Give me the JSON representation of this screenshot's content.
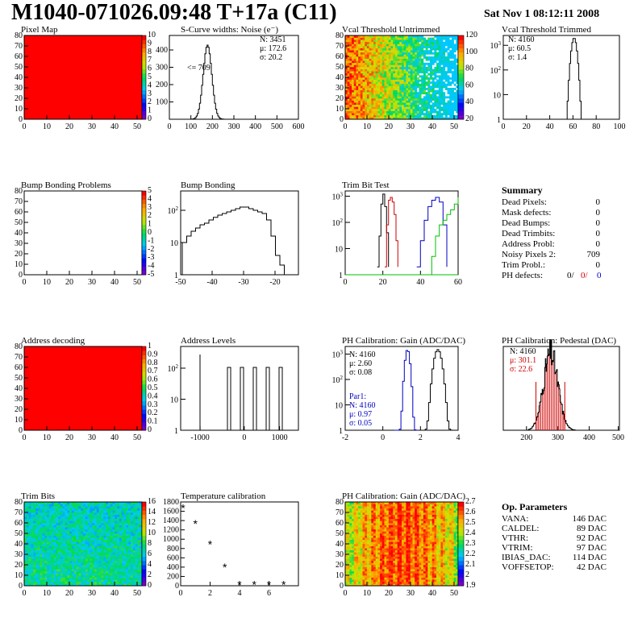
{
  "header": {
    "title": "M1040-071026.09:48 T+17a (C11)",
    "date": "Sat Nov  1 08:12:11 2008"
  },
  "panels": {
    "pixel_map": {
      "title": "Pixel Map",
      "x_ticks": [
        "0",
        "10",
        "20",
        "30",
        "40",
        "50"
      ],
      "y_ticks": [
        "0",
        "10",
        "20",
        "30",
        "40",
        "50",
        "60",
        "70",
        "80"
      ],
      "palette_ticks": [
        "10",
        "9",
        "8",
        "7",
        "6",
        "5",
        "4",
        "3",
        "2",
        "1",
        "0"
      ],
      "fill": "#ff0000"
    },
    "scurve": {
      "title": "S-Curve widths: Noise (e⁻)",
      "x_ticks": [
        "0",
        "100",
        "200",
        "300",
        "400",
        "500",
        "600"
      ],
      "y_ticks": [
        "100",
        "200",
        "300",
        "400"
      ],
      "stats": [
        "N: 3451",
        "μ: 172.6",
        "σ: 20.2"
      ],
      "annotation": "<= 709"
    },
    "vcal_untrimmed": {
      "title": "Vcal Threshold Untrimmed",
      "x_ticks": [
        "0",
        "10",
        "20",
        "30",
        "40",
        "50"
      ],
      "y_ticks": [
        "0",
        "10",
        "20",
        "30",
        "40",
        "50",
        "60",
        "70",
        "80"
      ],
      "palette_ticks": [
        "120",
        "100",
        "80",
        "60",
        "40",
        "20"
      ]
    },
    "vcal_trimmed": {
      "title": "Vcal Threshold Trimmed",
      "x_ticks": [
        "0",
        "20",
        "40",
        "60",
        "80",
        "100"
      ],
      "stats": [
        "N: 4160",
        "μ: 60.5",
        "σ: 1.4"
      ]
    },
    "bump_problems": {
      "title": "Bump Bonding Problems",
      "x_ticks": [
        "0",
        "10",
        "20",
        "30",
        "40",
        "50"
      ],
      "y_ticks": [
        "0",
        "10",
        "20",
        "30",
        "40",
        "50",
        "60",
        "70",
        "80"
      ],
      "palette_ticks": [
        "5",
        "4",
        "3",
        "2",
        "1",
        "0",
        "-1",
        "-2",
        "-3",
        "-4",
        "-5"
      ]
    },
    "bump_bonding": {
      "title": "Bump Bonding",
      "x_ticks": [
        "-50",
        "-40",
        "-30",
        "-20"
      ]
    },
    "trim_bit_test": {
      "title": "Trim Bit Test",
      "x_ticks": [
        "0",
        "20",
        "40",
        "60"
      ]
    },
    "summary": {
      "title": "Summary",
      "rows": [
        {
          "label": "Dead Pixels:",
          "value": "0"
        },
        {
          "label": "Mask defects:",
          "value": "0"
        },
        {
          "label": "Dead Bumps:",
          "value": "0"
        },
        {
          "label": "Dead Trimbits:",
          "value": "0"
        },
        {
          "label": "Address Probl:",
          "value": "0"
        },
        {
          "label": "Noisy Pixels 2:",
          "value": "709"
        },
        {
          "label": "Trim Probl.:",
          "value": "0"
        }
      ],
      "ph_label": "PH defects:",
      "ph_values": [
        "0/",
        "0/",
        "0"
      ]
    },
    "address_decoding": {
      "title": "Address decoding",
      "x_ticks": [
        "0",
        "10",
        "20",
        "30",
        "40",
        "50"
      ],
      "y_ticks": [
        "0",
        "10",
        "20",
        "30",
        "40",
        "50",
        "60",
        "70",
        "80"
      ],
      "palette_ticks": [
        "1",
        "0.9",
        "0.8",
        "0.7",
        "0.6",
        "0.5",
        "0.4",
        "0.3",
        "0.2",
        "0.1",
        "0"
      ]
    },
    "address_levels": {
      "title": "Address Levels",
      "x_ticks": [
        "-1000",
        "0",
        "1000"
      ]
    },
    "ph_gain": {
      "title": "PH Calibration: Gain (ADC/DAC)",
      "x_ticks": [
        "-2",
        "0",
        "2",
        "4"
      ],
      "stats": [
        "N: 4160",
        "μ: 2.60",
        "σ: 0.08"
      ],
      "par1": [
        "Par1:",
        "N: 4160",
        "μ: 0.97",
        "σ: 0.05"
      ]
    },
    "ph_pedestal": {
      "title": "PH Calibration: Pedestal (DAC)",
      "x_ticks": [
        "200",
        "300",
        "400",
        "500"
      ],
      "stats": [
        "N: 4160",
        "μ: 301.1",
        "σ: 22.6"
      ]
    },
    "trim_bits": {
      "title": "Trim Bits",
      "x_ticks": [
        "0",
        "10",
        "20",
        "30",
        "40",
        "50"
      ],
      "y_ticks": [
        "0",
        "10",
        "20",
        "30",
        "40",
        "50",
        "60",
        "70",
        "80"
      ],
      "palette_ticks": [
        "16",
        "14",
        "12",
        "10",
        "8",
        "6",
        "4",
        "2",
        "0"
      ]
    },
    "temperature": {
      "title": "Temperature calibration",
      "x_ticks": [
        "0",
        "2",
        "4",
        "6"
      ],
      "y_ticks": [
        "0",
        "200",
        "400",
        "600",
        "800",
        "1000",
        "1200",
        "1400",
        "1600",
        "1800"
      ]
    },
    "ph_gain_map": {
      "title": "PH Calibration: Gain (ADC/DAC)",
      "x_ticks": [
        "0",
        "10",
        "20",
        "30",
        "40",
        "50"
      ],
      "y_ticks": [
        "0",
        "10",
        "20",
        "30",
        "40",
        "50",
        "60",
        "70",
        "80"
      ],
      "palette_ticks": [
        "2.7",
        "2.6",
        "2.5",
        "2.4",
        "2.3",
        "2.2",
        "2.1",
        "2",
        "1.9"
      ]
    },
    "op_params": {
      "title": "Op. Parameters",
      "rows": [
        {
          "label": "VANA:",
          "value": "146 DAC"
        },
        {
          "label": "CALDEL:",
          "value": "89 DAC"
        },
        {
          "label": "VTHR:",
          "value": "92 DAC"
        },
        {
          "label": "VTRIM:",
          "value": "97 DAC"
        },
        {
          "label": "IBIAS_DAC:",
          "value": "114 DAC"
        },
        {
          "label": "VOFFSETOP:",
          "value": "42 DAC"
        }
      ]
    }
  },
  "chart_data": [
    {
      "type": "heatmap",
      "title": "Pixel Map",
      "xlim": [
        0,
        52
      ],
      "ylim": [
        0,
        80
      ],
      "uniform_value": 10
    },
    {
      "type": "bar",
      "title": "S-Curve widths: Noise (e⁻)",
      "x": [
        120,
        140,
        150,
        160,
        170,
        180,
        190,
        200,
        210,
        220,
        230,
        240
      ],
      "values": [
        60,
        120,
        250,
        400,
        430,
        330,
        220,
        120,
        60,
        20,
        8,
        2
      ],
      "xlim": [
        0,
        600
      ],
      "ylim": [
        0,
        460
      ]
    },
    {
      "type": "heatmap",
      "title": "Vcal Threshold Untrimmed",
      "xlim": [
        0,
        52
      ],
      "ylim": [
        0,
        80
      ],
      "zrange": [
        20,
        125
      ]
    },
    {
      "type": "bar",
      "title": "Vcal Threshold Trimmed",
      "x": [
        55,
        57,
        58,
        59,
        60,
        61,
        62,
        63,
        64,
        66
      ],
      "values": [
        1,
        5,
        60,
        400,
        1800,
        1500,
        300,
        40,
        5,
        1
      ],
      "xlim": [
        0,
        100
      ],
      "log_y": true
    },
    {
      "type": "heatmap",
      "title": "Bump Bonding Problems",
      "xlim": [
        0,
        52
      ],
      "ylim": [
        0,
        80
      ],
      "zrange": [
        -5,
        5
      ]
    },
    {
      "type": "bar",
      "title": "Bump Bonding",
      "x": [
        -50,
        -48,
        -46,
        -44,
        -42,
        -40,
        -38,
        -36,
        -34,
        -32,
        -30,
        -28,
        -26,
        -24,
        -22,
        -20,
        -18
      ],
      "values": [
        40,
        60,
        90,
        110,
        130,
        140,
        160,
        180,
        200,
        220,
        240,
        230,
        200,
        80,
        10,
        2,
        1
      ],
      "xlim": [
        -50,
        -15
      ],
      "log_y": true
    },
    {
      "type": "line",
      "title": "Trim Bit Test",
      "series": [
        {
          "x": [
            17,
            18,
            19,
            20,
            21,
            22,
            23
          ],
          "y": [
            2,
            30,
            500,
            1200,
            400,
            40,
            2
          ],
          "color": "#000000"
        },
        {
          "x": [
            21,
            22,
            23,
            24,
            25,
            26,
            27,
            28
          ],
          "y": [
            2,
            80,
            700,
            900,
            600,
            200,
            20,
            2
          ],
          "color": "#d00000"
        },
        {
          "x": [
            38,
            40,
            42,
            44,
            46,
            48,
            50,
            52,
            54
          ],
          "y": [
            2,
            20,
            120,
            400,
            700,
            900,
            600,
            80,
            2
          ],
          "color": "#0000c0"
        },
        {
          "x": [
            44,
            46,
            48,
            50,
            52,
            54,
            56,
            58,
            60
          ],
          "y": [
            1,
            5,
            30,
            80,
            120,
            200,
            300,
            500,
            900
          ],
          "color": "#00c000"
        }
      ],
      "xlim": [
        0,
        60
      ],
      "log_y": true
    },
    {
      "type": "heatmap",
      "title": "Address decoding",
      "xlim": [
        0,
        52
      ],
      "ylim": [
        0,
        80
      ],
      "uniform_value": 1
    },
    {
      "type": "bar",
      "title": "Address Levels",
      "x": [
        -1000,
        -250,
        -100,
        50,
        200,
        350,
        500,
        650,
        800,
        950
      ],
      "values": [
        100,
        300,
        300,
        300,
        300,
        300,
        300,
        300,
        300,
        300
      ],
      "xlim": [
        -1300,
        1300
      ],
      "log_y": true
    },
    {
      "type": "line",
      "title": "PH Calibration: Gain (ADC/DAC)",
      "series": [
        {
          "name": "Par1",
          "x": [
            0.8,
            0.9,
            1.0,
            1.1,
            1.2
          ],
          "y": [
            10,
            300,
            1000,
            200,
            5
          ],
          "color": "#0000c0"
        },
        {
          "x": [
            2.3,
            2.4,
            2.5,
            2.6,
            2.7,
            2.8,
            2.9
          ],
          "y": [
            5,
            50,
            400,
            900,
            500,
            40,
            2
          ],
          "color": "#000000"
        }
      ],
      "xlim": [
        -2,
        6
      ],
      "log_y": true
    },
    {
      "type": "bar",
      "title": "PH Calibration: Pedestal (DAC)",
      "x": [
        240,
        250,
        260,
        270,
        280,
        290,
        300,
        310,
        320,
        330,
        340,
        350,
        360,
        370
      ],
      "values": [
        2,
        10,
        30,
        60,
        90,
        120,
        140,
        130,
        110,
        80,
        50,
        25,
        10,
        3
      ],
      "xlim": [
        150,
        520
      ]
    },
    {
      "type": "heatmap",
      "title": "Trim Bits",
      "xlim": [
        0,
        52
      ],
      "ylim": [
        0,
        80
      ],
      "zrange": [
        0,
        16
      ]
    },
    {
      "type": "scatter",
      "title": "Temperature calibration",
      "x": [
        0,
        1,
        2,
        3,
        4,
        5,
        6,
        7
      ],
      "y": [
        1700,
        1350,
        900,
        390,
        10,
        10,
        10,
        10
      ],
      "xlim": [
        0,
        8
      ],
      "ylim": [
        0,
        1850
      ]
    },
    {
      "type": "heatmap",
      "title": "PH Calibration: Gain (ADC/DAC)",
      "xlim": [
        0,
        52
      ],
      "ylim": [
        0,
        80
      ],
      "zrange": [
        1.9,
        2.7
      ]
    }
  ]
}
